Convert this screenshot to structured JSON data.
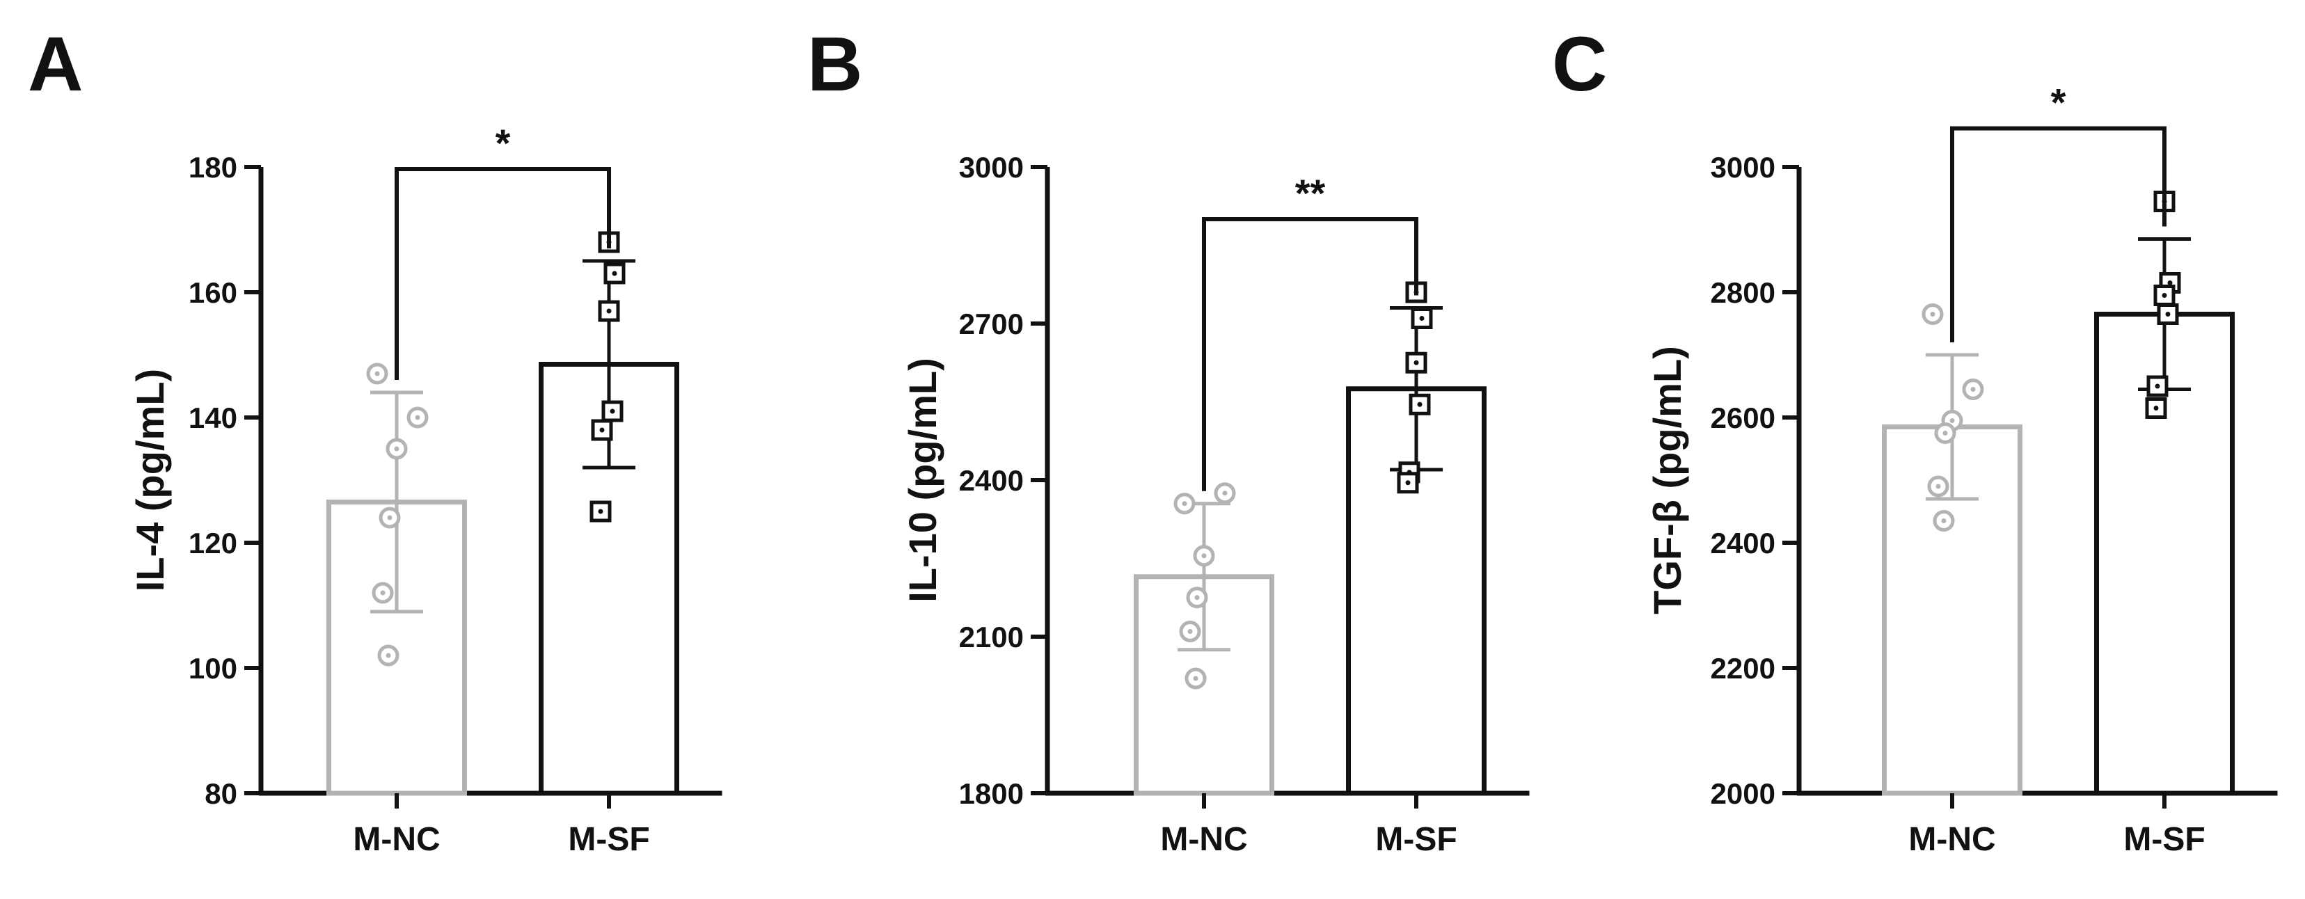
{
  "chart_data": [
    {
      "type": "bar",
      "panel_label": "A",
      "ylabel": "IL-4 (pg/mL)",
      "categories": [
        "M-NC",
        "M-SF"
      ],
      "values": [
        126.5,
        148.5
      ],
      "errors": [
        17.5,
        16.5
      ],
      "ylim": [
        80,
        180
      ],
      "yticks": [
        80,
        100,
        120,
        140,
        160,
        180
      ],
      "points": [
        [
          147,
          140,
          135,
          124,
          112,
          102
        ],
        [
          168,
          163,
          157,
          141,
          138,
          125
        ]
      ],
      "significance": "*",
      "grid": false,
      "legend": "none"
    },
    {
      "type": "bar",
      "panel_label": "B",
      "ylabel": "IL-10 (pg/mL)",
      "categories": [
        "M-NC",
        "M-SF"
      ],
      "values": [
        2215,
        2575
      ],
      "errors": [
        140,
        155
      ],
      "ylim": [
        1800,
        3000
      ],
      "yticks": [
        1800,
        2100,
        2400,
        2700,
        3000
      ],
      "points": [
        [
          2355,
          2375,
          2255,
          2175,
          2110,
          2020
        ],
        [
          2760,
          2710,
          2625,
          2545,
          2415,
          2395
        ]
      ],
      "significance": "**",
      "grid": false,
      "legend": "none"
    },
    {
      "type": "bar",
      "panel_label": "C",
      "ylabel": "TGF-β (pg/mL)",
      "categories": [
        "M-NC",
        "M-SF"
      ],
      "values": [
        2585,
        2765
      ],
      "errors": [
        115,
        120
      ],
      "ylim": [
        2000,
        3000
      ],
      "yticks": [
        2000,
        2200,
        2400,
        2600,
        2800,
        3000
      ],
      "points": [
        [
          2765,
          2645,
          2595,
          2575,
          2490,
          2435
        ],
        [
          2945,
          2815,
          2795,
          2765,
          2650,
          2615
        ]
      ],
      "significance": "*",
      "grid": false,
      "legend": "none"
    }
  ],
  "colors": {
    "nc": "#b3b3b3",
    "sf": "#111111"
  }
}
